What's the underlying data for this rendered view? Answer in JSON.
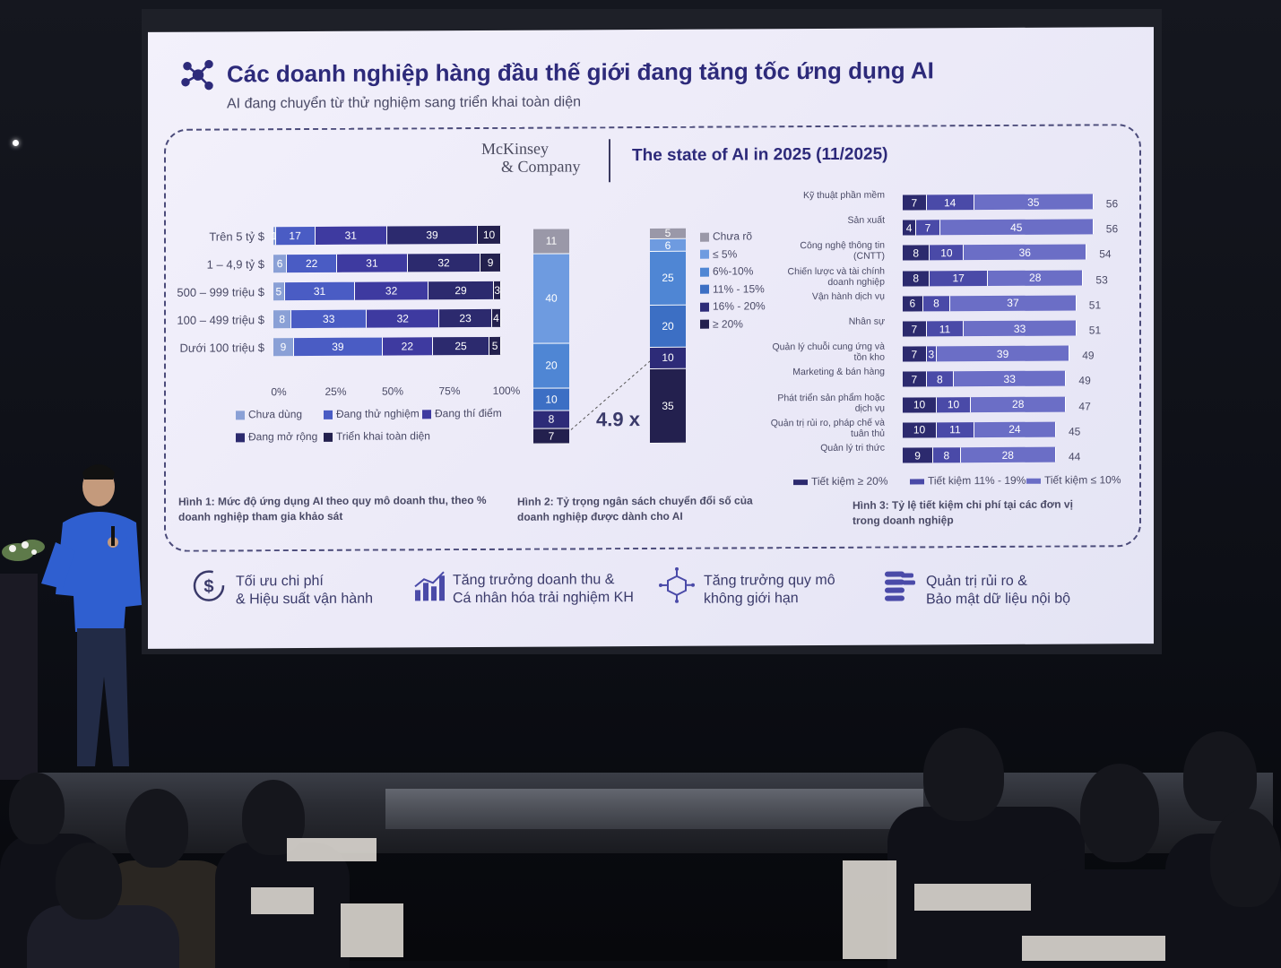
{
  "slide": {
    "title": "Các doanh nghiệp hàng đầu thế giới đang tăng tốc ứng dụng AI",
    "subtitle": "AI đang chuyển từ thử nghiệm sang triển khai toàn diện",
    "source_line1": "McKinsey",
    "source_line2": "& Company",
    "report": "The state of AI in 2025 (11/2025)"
  },
  "chart_data": [
    {
      "type": "bar",
      "orientation": "horizontal-stacked",
      "categories": [
        "Trên 5 tỷ $",
        "1 – 4,9 tỷ $",
        "500 – 999 triệu $",
        "100 – 499 triệu $",
        "Dưới 100 triệu $"
      ],
      "series": [
        {
          "name": "Chưa dùng",
          "values": [
            1,
            6,
            5,
            8,
            9
          ]
        },
        {
          "name": "Đang thử nghiệm",
          "values": [
            17,
            22,
            31,
            33,
            39
          ]
        },
        {
          "name": "Đang thí điểm",
          "values": [
            31,
            31,
            32,
            32,
            22
          ]
        },
        {
          "name": "Đang mở rộng",
          "values": [
            39,
            32,
            29,
            23,
            25
          ]
        },
        {
          "name": "Triển khai toàn diện",
          "values": [
            10,
            9,
            3,
            4,
            5
          ]
        }
      ],
      "x_ticks": [
        "0%",
        "25%",
        "50%",
        "75%",
        "100%"
      ],
      "caption": "Hình 1: Mức độ ứng dụng AI theo quy mô doanh thu, theo % doanh nghiệp tham gia khảo sát"
    },
    {
      "type": "bar",
      "orientation": "vertical-stacked",
      "legend": [
        "Chưa rõ",
        "≤ 5%",
        "6%-10%",
        "11% - 15%",
        "16% - 20%",
        "≥ 20%"
      ],
      "series": [
        {
          "values": [
            11,
            40,
            20,
            10,
            8,
            7
          ]
        },
        {
          "values": [
            5,
            6,
            25,
            20,
            10,
            35
          ]
        }
      ],
      "annotation": "4.9 x",
      "caption": "Hình 2: Tỷ trọng ngân sách chuyển đổi số của doanh nghiệp được dành cho AI"
    },
    {
      "type": "bar",
      "orientation": "horizontal-stacked",
      "categories": [
        "Kỹ thuật phần mềm",
        "Sản xuất",
        "Công nghệ thông tin (CNTT)",
        "Chiến lược và tài chính doanh nghiệp",
        "Vận hành dịch vụ",
        "Nhân sự",
        "Quản lý chuỗi cung ứng và tồn kho",
        "Marketing & bán hàng",
        "Phát triển sản phẩm hoặc dịch vụ",
        "Quản trị rủi ro, pháp chế và tuân thủ",
        "Quản lý tri thức"
      ],
      "series": [
        {
          "name": "Tiết kiệm ≥ 20%",
          "values": [
            7,
            4,
            8,
            8,
            6,
            7,
            7,
            7,
            10,
            10,
            9
          ]
        },
        {
          "name": "Tiết kiệm 11% - 19%",
          "values": [
            14,
            7,
            10,
            17,
            8,
            11,
            3,
            8,
            10,
            11,
            8
          ]
        },
        {
          "name": "Tiết kiệm ≤ 10%",
          "values": [
            35,
            45,
            36,
            28,
            37,
            33,
            39,
            33,
            28,
            24,
            28
          ]
        }
      ],
      "totals": [
        56,
        56,
        54,
        53,
        51,
        51,
        49,
        49,
        47,
        45,
        44
      ],
      "caption": "Hình 3: Tỷ lệ tiết kiệm chi phí tại các đơn vị trong doanh nghiệp"
    }
  ],
  "features": [
    {
      "line1": "Tối ưu chi phí",
      "line2": "& Hiệu suất vận hành",
      "icon": "dollar-cycle-icon"
    },
    {
      "line1": "Tăng trưởng doanh thu &",
      "line2": "Cá nhân hóa trải nghiệm KH",
      "icon": "bar-chart-icon"
    },
    {
      "line1": "Tăng trưởng quy mô",
      "line2": "không giới hạn",
      "icon": "network-cube-icon"
    },
    {
      "line1": "Quản trị rủi ro &",
      "line2": "Bảo mật dữ liệu nội bộ",
      "icon": "database-stack-icon"
    }
  ],
  "colors": {
    "title": "#2d2a7a",
    "chua_dung": "#8aa0d6",
    "thu_nghiem": "#4a5cc4",
    "thi_diem": "#3e3aa0",
    "mo_rong": "#2c2a6e",
    "toan_dien": "#23204e"
  }
}
